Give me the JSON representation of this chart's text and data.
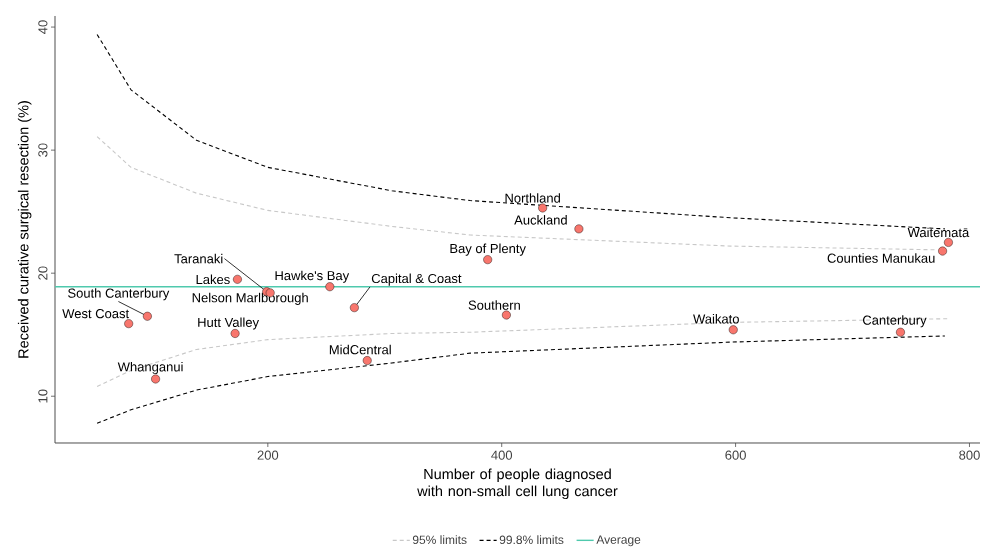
{
  "chart_data": {
    "type": "scatter",
    "xlabel": "Number of people diagnosed with non-small cell lung cancer",
    "ylabel": "Received curative surgical resection (%)",
    "xlim": [
      18,
      809
    ],
    "ylim": [
      6.2,
      40.9
    ],
    "xticks": [
      200,
      400,
      600,
      800
    ],
    "yticks": [
      10,
      20,
      30,
      40
    ],
    "grid": false,
    "legend": "bottom",
    "marker": "circle",
    "series": [
      {
        "color": "#f8766d",
        "x": [
          435,
          466,
          388,
          782,
          777,
          199,
          174,
          253,
          202,
          274,
          97,
          81,
          172,
          104,
          285,
          404,
          598,
          741
        ],
        "values": [
          25.3,
          23.6,
          21.1,
          22.5,
          21.8,
          18.5,
          19.5,
          18.9,
          18.4,
          17.2,
          16.5,
          15.9,
          15.1,
          11.4,
          12.9,
          16.6,
          15.4,
          15.2
        ]
      },
      {
        "type": "line",
        "name": "95% limits",
        "color": "#c8c8c8",
        "line_style": "dashed",
        "marker": "none",
        "x": [
          54,
          83,
          139,
          200,
          306,
          373,
          596,
          771
        ],
        "values": [
          31.1,
          28.6,
          26.5,
          25.1,
          23.8,
          23.1,
          22.2,
          21.9
        ]
      },
      {
        "type": "line",
        "color": "#c8c8c8",
        "line_style": "dashed",
        "marker": "none",
        "x": [
          54,
          83,
          139,
          200,
          306,
          373,
          596,
          782
        ],
        "values": [
          10.8,
          12.1,
          13.8,
          14.6,
          15.1,
          15.2,
          16.0,
          16.3
        ]
      },
      {
        "type": "line",
        "name": "99.8% limits",
        "color": "#000000",
        "line_style": "dashed",
        "marker": "none",
        "x": [
          54,
          83,
          139,
          200,
          306,
          373,
          596,
          779
        ],
        "values": [
          39.4,
          34.9,
          30.8,
          28.6,
          26.7,
          25.9,
          24.5,
          23.6
        ]
      },
      {
        "type": "line",
        "color": "#000000",
        "line_style": "dashed",
        "marker": "none",
        "x": [
          54,
          83,
          139,
          200,
          306,
          373,
          596,
          779
        ],
        "values": [
          7.8,
          8.9,
          10.5,
          11.6,
          12.7,
          13.5,
          14.4,
          14.9
        ]
      }
    ],
    "ref_lines": [
      {
        "axis": "y",
        "value": 18.9,
        "label": "Average",
        "color": "#4fc9ad"
      }
    ],
    "annotations": [
      {
        "text": "Northland",
        "x": 435,
        "y": 25.3
      },
      {
        "text": "Auckland",
        "x": 466,
        "y": 23.6
      },
      {
        "text": "Bay of Plenty",
        "x": 388,
        "y": 21.1
      },
      {
        "text": "Waitematā",
        "x": 782,
        "y": 22.5
      },
      {
        "text": "Counties Manukau",
        "x": 777,
        "y": 21.8
      },
      {
        "text": "Taranaki",
        "x": 199,
        "y": 18.5
      },
      {
        "text": "Lakes",
        "x": 174,
        "y": 19.5
      },
      {
        "text": "Hawke's Bay",
        "x": 253,
        "y": 18.9
      },
      {
        "text": "Nelson Marlborough",
        "x": 202,
        "y": 18.4
      },
      {
        "text": "Capital & Coast",
        "x": 274,
        "y": 17.2
      },
      {
        "text": "South Canterbury",
        "x": 97,
        "y": 16.5
      },
      {
        "text": "West Coast",
        "x": 81,
        "y": 15.9
      },
      {
        "text": "Hutt Valley",
        "x": 172,
        "y": 15.1
      },
      {
        "text": "Whanganui",
        "x": 104,
        "y": 11.4
      },
      {
        "text": "MidCentral",
        "x": 285,
        "y": 12.9
      },
      {
        "text": "Southern",
        "x": 404,
        "y": 16.6
      },
      {
        "text": "Waikato",
        "x": 598,
        "y": 15.4
      },
      {
        "text": "Canterbury",
        "x": 741,
        "y": 15.2
      }
    ]
  }
}
